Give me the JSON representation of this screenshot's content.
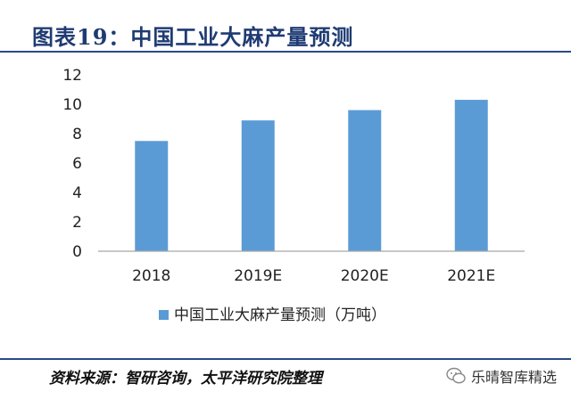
{
  "header": {
    "title": "图表19：中国工业大麻产量预测"
  },
  "chart_data": {
    "type": "bar",
    "title": "图表19：中国工业大麻产量预测",
    "categories": [
      "2018",
      "2019E",
      "2020E",
      "2021E"
    ],
    "series": [
      {
        "name": "中国工业大麻产量预测（万吨）",
        "values": [
          7.5,
          8.9,
          9.6,
          10.3
        ]
      }
    ],
    "ylim": [
      0,
      12
    ],
    "yticks": [
      "0",
      "2",
      "4",
      "6",
      "8",
      "10",
      "12"
    ],
    "xlabel": "",
    "ylabel": "",
    "legend_position": "bottom",
    "bar_color": "#5b9bd5",
    "grid": false
  },
  "footer": {
    "source": "资料来源：智研咨询，太平洋研究院整理",
    "watermark": "乐晴智库精选"
  }
}
